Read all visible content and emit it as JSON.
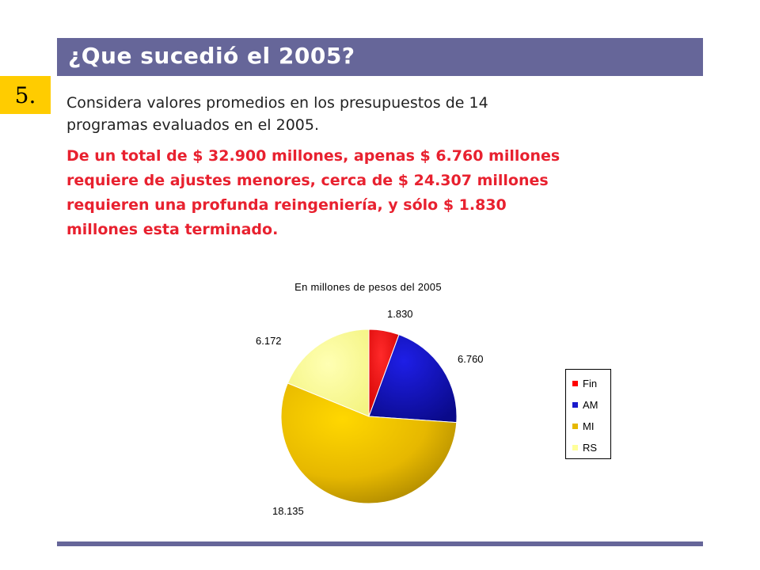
{
  "header": {
    "title": "¿Que sucedió el 2005?"
  },
  "slide_number": "5.",
  "body": {
    "intro": "Considera valores promedios en los presupuestos de 14\nprogramas evaluados en el  2005.",
    "highlight": "De un total de $ 32.900 millones, apenas $ 6.760 millones\nrequiere de ajustes menores, cerca de $ 24.307 millones\nrequieren una profunda reingeniería, y sólo  $ 1.830\nmillones esta terminado."
  },
  "colors": {
    "title_bar": "#666699",
    "slide_number_bg": "#ffcc00",
    "highlight_text": "#e8212f"
  },
  "chart_data": {
    "type": "pie",
    "title": "En millones de pesos del 2005",
    "categories": [
      "Fin",
      "AM",
      "MI",
      "RS"
    ],
    "values": [
      1830,
      6760,
      18135,
      6172
    ],
    "data_labels": [
      "1.830",
      "6.760",
      "18.135",
      "6.172"
    ],
    "colors": [
      "#ff0000",
      "#1a1acc",
      "#e6b800",
      "#ffff99"
    ],
    "legend": "right",
    "start_angle": "12 o'clock",
    "direction": "clockwise"
  }
}
